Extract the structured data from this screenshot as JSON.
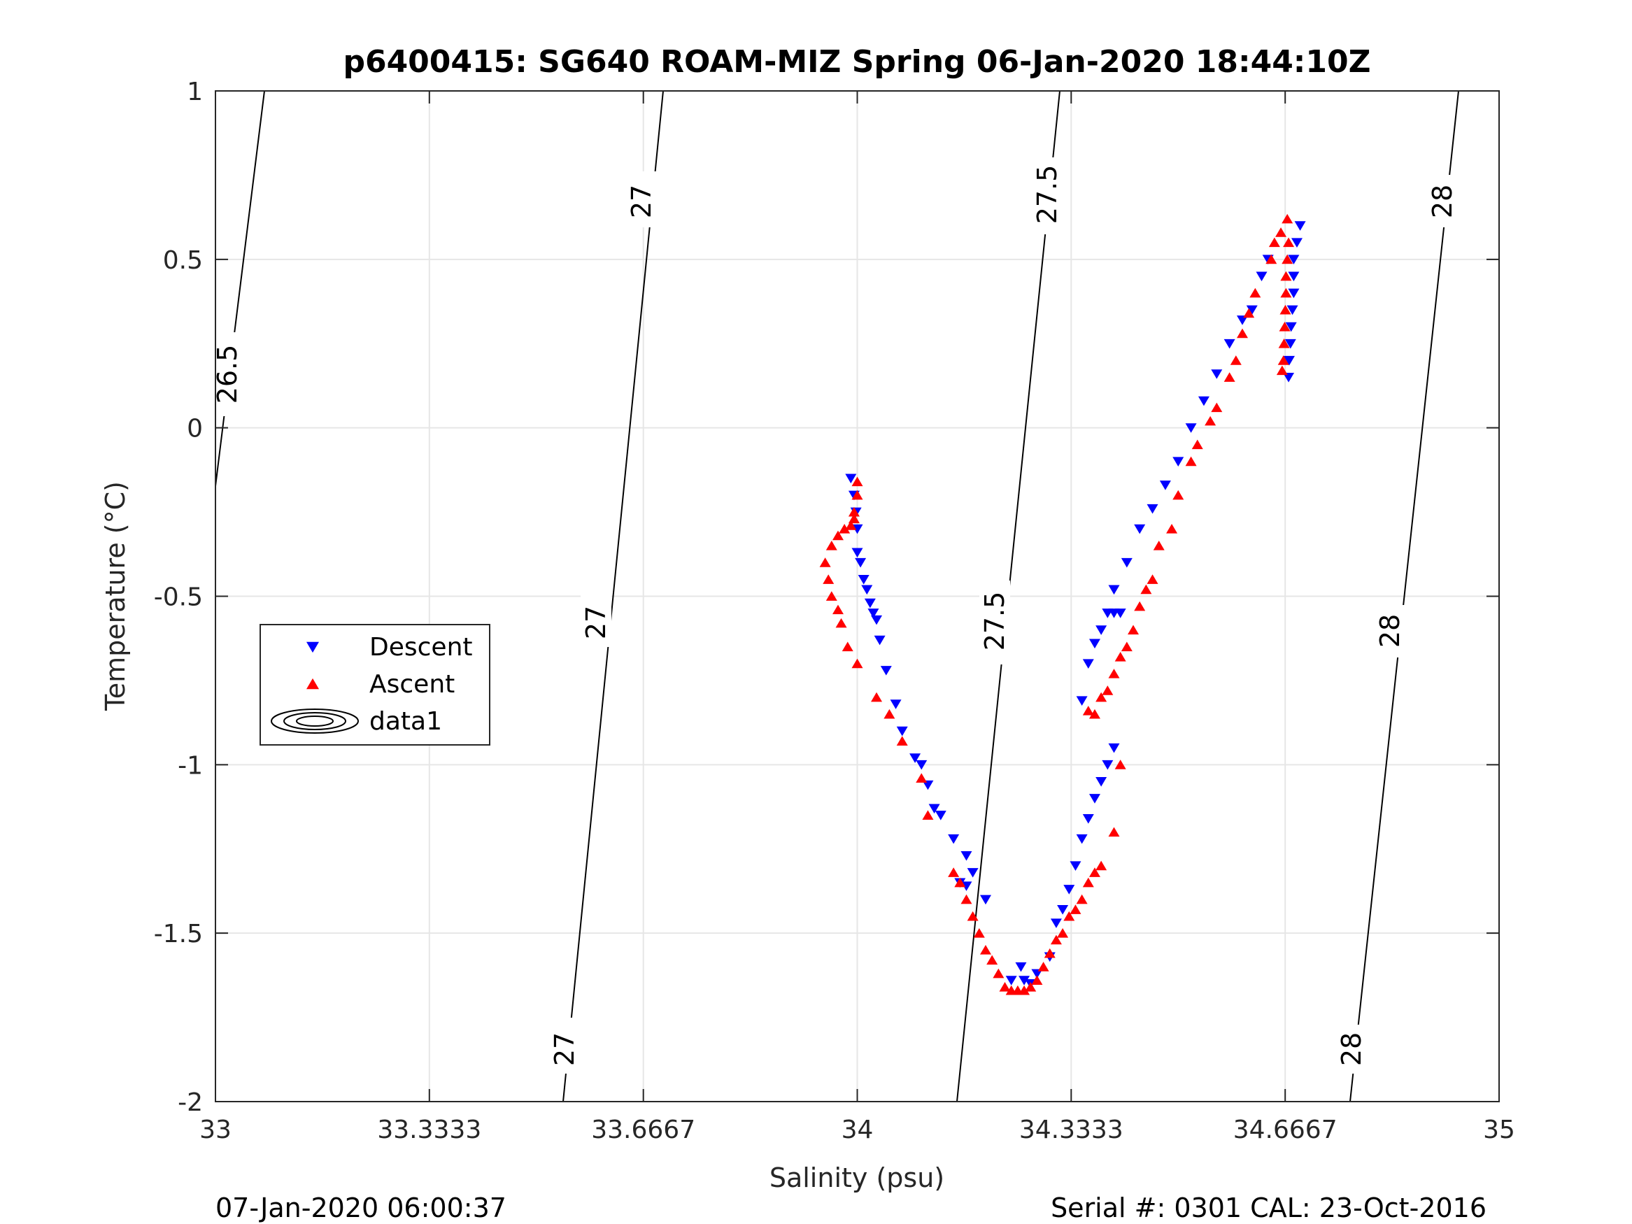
{
  "chart_data": {
    "type": "scatter",
    "title": "p6400415: SG640 ROAM-MIZ Spring 06-Jan-2020 18:44:10Z",
    "xlabel": "Salinity (psu)",
    "ylabel": "Temperature (°C)",
    "xlim": [
      33,
      35
    ],
    "ylim": [
      -2,
      1
    ],
    "xticks": [
      33,
      33.3333,
      33.6667,
      34,
      34.3333,
      34.6667,
      35
    ],
    "xtick_labels": [
      "33",
      "33.3333",
      "33.6667",
      "34",
      "34.3333",
      "34.6667",
      "35"
    ],
    "yticks": [
      -2,
      -1.5,
      -1,
      -0.5,
      0,
      0.5,
      1
    ],
    "ytick_labels": [
      "-2",
      "-1.5",
      "-1",
      "-0.5",
      "0",
      "0.5",
      "1"
    ],
    "grid": true,
    "legend_placement": "left",
    "legend": [
      "Descent",
      "Ascent",
      "data1"
    ],
    "series": [
      {
        "name": "Descent",
        "marker": "triangle-down",
        "color": "#0000ff",
        "points": [
          [
            34.69,
            0.6
          ],
          [
            34.685,
            0.55
          ],
          [
            34.68,
            0.5
          ],
          [
            34.68,
            0.45
          ],
          [
            34.68,
            0.4
          ],
          [
            34.678,
            0.35
          ],
          [
            34.676,
            0.3
          ],
          [
            34.675,
            0.25
          ],
          [
            34.673,
            0.2
          ],
          [
            34.672,
            0.15
          ],
          [
            34.64,
            0.5
          ],
          [
            34.63,
            0.45
          ],
          [
            34.615,
            0.35
          ],
          [
            34.6,
            0.32
          ],
          [
            34.58,
            0.25
          ],
          [
            34.56,
            0.16
          ],
          [
            34.54,
            0.08
          ],
          [
            34.52,
            0.0
          ],
          [
            34.5,
            -0.1
          ],
          [
            34.48,
            -0.17
          ],
          [
            34.46,
            -0.24
          ],
          [
            34.44,
            -0.3
          ],
          [
            34.42,
            -0.4
          ],
          [
            34.4,
            -0.48
          ],
          [
            34.39,
            -0.55
          ],
          [
            34.38,
            -0.6
          ],
          [
            34.37,
            -0.64
          ],
          [
            34.36,
            -0.7
          ],
          [
            34.35,
            -0.81
          ],
          [
            34.4,
            -0.55
          ],
          [
            34.41,
            -0.55
          ],
          [
            34.4,
            -0.95
          ],
          [
            34.39,
            -1.0
          ],
          [
            34.38,
            -1.05
          ],
          [
            34.37,
            -1.1
          ],
          [
            34.36,
            -1.16
          ],
          [
            34.35,
            -1.22
          ],
          [
            34.34,
            -1.3
          ],
          [
            34.33,
            -1.37
          ],
          [
            34.32,
            -1.43
          ],
          [
            34.31,
            -1.47
          ],
          [
            34.3,
            -1.57
          ],
          [
            34.28,
            -1.62
          ],
          [
            34.27,
            -1.65
          ],
          [
            34.26,
            -1.64
          ],
          [
            34.255,
            -1.6
          ],
          [
            34.24,
            -1.64
          ],
          [
            34.2,
            -1.4
          ],
          [
            34.18,
            -1.32
          ],
          [
            34.17,
            -1.36
          ],
          [
            34.16,
            -1.35
          ],
          [
            34.17,
            -1.27
          ],
          [
            34.15,
            -1.22
          ],
          [
            34.13,
            -1.15
          ],
          [
            34.12,
            -1.13
          ],
          [
            34.11,
            -1.06
          ],
          [
            34.1,
            -1.0
          ],
          [
            34.09,
            -0.98
          ],
          [
            34.07,
            -0.9
          ],
          [
            34.06,
            -0.82
          ],
          [
            34.045,
            -0.72
          ],
          [
            34.035,
            -0.63
          ],
          [
            34.03,
            -0.57
          ],
          [
            34.025,
            -0.55
          ],
          [
            34.02,
            -0.52
          ],
          [
            34.015,
            -0.48
          ],
          [
            34.01,
            -0.45
          ],
          [
            34.005,
            -0.4
          ],
          [
            34.0,
            -0.37
          ],
          [
            34.0,
            -0.3
          ],
          [
            33.998,
            -0.25
          ],
          [
            33.995,
            -0.2
          ],
          [
            33.99,
            -0.15
          ]
        ]
      },
      {
        "name": "Ascent",
        "marker": "triangle-up",
        "color": "#ff0000",
        "points": [
          [
            34.67,
            0.62
          ],
          [
            34.672,
            0.55
          ],
          [
            34.67,
            0.5
          ],
          [
            34.668,
            0.45
          ],
          [
            34.668,
            0.4
          ],
          [
            34.667,
            0.35
          ],
          [
            34.666,
            0.3
          ],
          [
            34.665,
            0.25
          ],
          [
            34.664,
            0.2
          ],
          [
            34.662,
            0.17
          ],
          [
            34.66,
            0.58
          ],
          [
            34.65,
            0.55
          ],
          [
            34.645,
            0.5
          ],
          [
            34.62,
            0.4
          ],
          [
            34.61,
            0.34
          ],
          [
            34.6,
            0.28
          ],
          [
            34.59,
            0.2
          ],
          [
            34.58,
            0.15
          ],
          [
            34.56,
            0.06
          ],
          [
            34.55,
            0.02
          ],
          [
            34.53,
            -0.05
          ],
          [
            34.52,
            -0.1
          ],
          [
            34.5,
            -0.2
          ],
          [
            34.49,
            -0.3
          ],
          [
            34.47,
            -0.35
          ],
          [
            34.46,
            -0.45
          ],
          [
            34.45,
            -0.48
          ],
          [
            34.44,
            -0.53
          ],
          [
            34.43,
            -0.6
          ],
          [
            34.42,
            -0.65
          ],
          [
            34.41,
            -0.68
          ],
          [
            34.4,
            -0.73
          ],
          [
            34.39,
            -0.78
          ],
          [
            34.38,
            -0.8
          ],
          [
            34.37,
            -0.85
          ],
          [
            34.36,
            -0.84
          ],
          [
            34.41,
            -1.0
          ],
          [
            34.4,
            -1.2
          ],
          [
            34.38,
            -1.3
          ],
          [
            34.37,
            -1.32
          ],
          [
            34.36,
            -1.35
          ],
          [
            34.35,
            -1.4
          ],
          [
            34.34,
            -1.43
          ],
          [
            34.33,
            -1.45
          ],
          [
            34.32,
            -1.5
          ],
          [
            34.31,
            -1.52
          ],
          [
            34.3,
            -1.56
          ],
          [
            34.29,
            -1.6
          ],
          [
            34.28,
            -1.64
          ],
          [
            34.27,
            -1.66
          ],
          [
            34.26,
            -1.67
          ],
          [
            34.25,
            -1.67
          ],
          [
            34.24,
            -1.67
          ],
          [
            34.23,
            -1.66
          ],
          [
            34.22,
            -1.62
          ],
          [
            34.21,
            -1.58
          ],
          [
            34.2,
            -1.55
          ],
          [
            34.19,
            -1.5
          ],
          [
            34.18,
            -1.45
          ],
          [
            34.17,
            -1.4
          ],
          [
            34.16,
            -1.35
          ],
          [
            34.15,
            -1.32
          ],
          [
            34.11,
            -1.15
          ],
          [
            34.1,
            -1.04
          ],
          [
            34.07,
            -0.93
          ],
          [
            34.05,
            -0.85
          ],
          [
            34.03,
            -0.8
          ],
          [
            34.0,
            -0.7
          ],
          [
            33.985,
            -0.65
          ],
          [
            33.975,
            -0.58
          ],
          [
            33.97,
            -0.54
          ],
          [
            33.96,
            -0.5
          ],
          [
            33.955,
            -0.45
          ],
          [
            33.95,
            -0.4
          ],
          [
            33.96,
            -0.35
          ],
          [
            33.97,
            -0.32
          ],
          [
            33.98,
            -0.3
          ],
          [
            33.99,
            -0.29
          ],
          [
            33.995,
            -0.27
          ],
          [
            34.0,
            -0.2
          ],
          [
            34.0,
            -0.16
          ],
          [
            33.995,
            -0.25
          ]
        ]
      },
      {
        "name": "data1",
        "kind": "density-contours",
        "levels": [
          26.5,
          27,
          27.5,
          28
        ]
      }
    ]
  },
  "footer": {
    "left": "07-Jan-2020 06:00:37",
    "right": "Serial #: 0301  CAL: 23-Oct-2016"
  },
  "contour_labels": [
    "26.5",
    "27",
    "27",
    "27",
    "27.5",
    "27.5",
    "28",
    "28",
    "28"
  ]
}
